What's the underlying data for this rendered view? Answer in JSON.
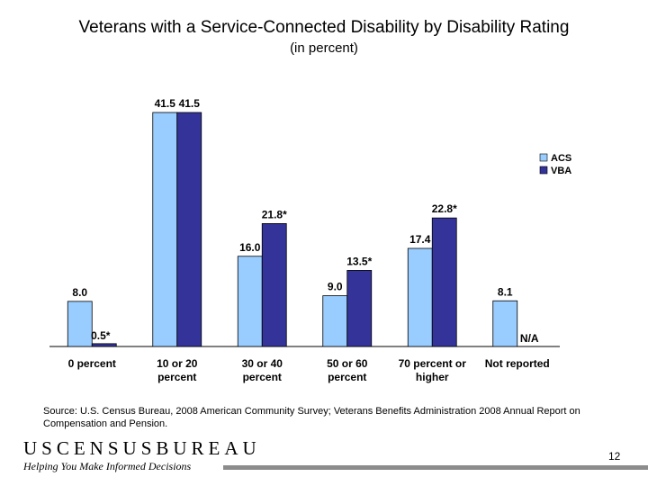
{
  "chart_data": {
    "type": "bar",
    "title": "Veterans with a Service-Connected Disability by Disability Rating",
    "subtitle": "(in percent)",
    "categories": [
      [
        "0 percent"
      ],
      [
        "10 or 20",
        "percent"
      ],
      [
        "30 or 40",
        "percent"
      ],
      [
        "50 or 60",
        "percent"
      ],
      [
        "70 percent or",
        "higher"
      ],
      [
        "Not reported"
      ]
    ],
    "series": [
      {
        "name": "ACS",
        "color": "#99ccff",
        "values": [
          8.0,
          41.5,
          16.0,
          9.0,
          17.4,
          8.1
        ],
        "labels": [
          "8.0",
          "41.5",
          "16.0",
          "9.0",
          "17.4",
          "8.1"
        ]
      },
      {
        "name": "VBA",
        "color": "#333399",
        "values": [
          0.5,
          41.5,
          21.8,
          13.5,
          22.8,
          null
        ],
        "labels": [
          "0.5*",
          "41.5",
          "21.8*",
          "13.5*",
          "22.8*",
          "N/A"
        ]
      }
    ],
    "ylim": [
      0,
      41.5
    ],
    "grid": false,
    "legend": "right"
  },
  "source": "Source: U.S. Census Bureau, 2008 American Community Survey; Veterans Benefits Administration 2008 Annual Report on Compensation and Pension.",
  "footer": {
    "brand": "USCENSUSBUREAU",
    "tagline": "Helping You Make Informed Decisions",
    "page": "12"
  }
}
